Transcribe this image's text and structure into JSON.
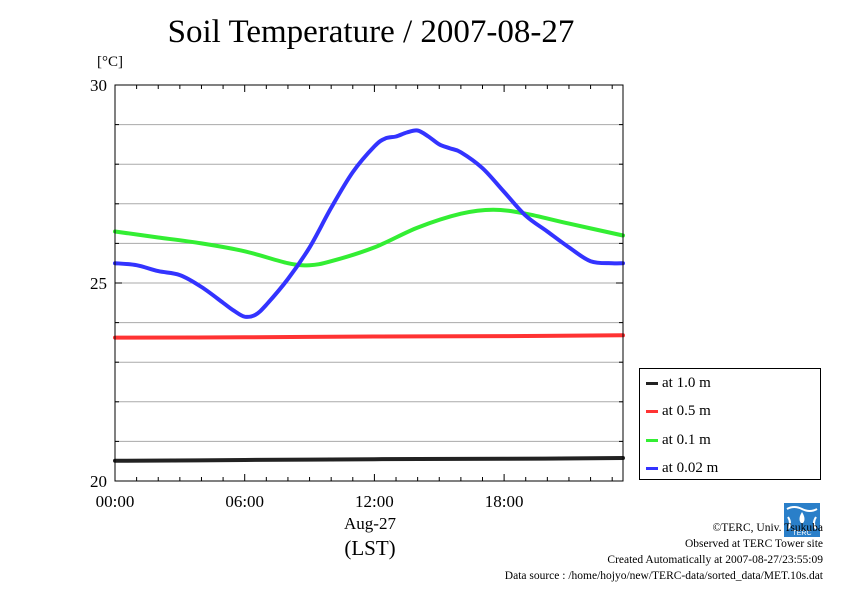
{
  "chart_data": {
    "type": "line",
    "title": "Soil Temperature / 2007-08-27",
    "ylabel": "[°C]",
    "xlabel_date": "Aug-27",
    "xlabel_tz": "(LST)",
    "xlim_hours": [
      0,
      23.5
    ],
    "ylim": [
      20,
      30
    ],
    "x_ticks": [
      {
        "value": 0,
        "label": "00:00"
      },
      {
        "value": 6,
        "label": "06:00"
      },
      {
        "value": 12,
        "label": "12:00"
      },
      {
        "value": 18,
        "label": "18:00"
      }
    ],
    "y_ticks": [
      {
        "value": 20,
        "label": "20"
      },
      {
        "value": 25,
        "label": "25"
      },
      {
        "value": 30,
        "label": "30"
      }
    ],
    "grid": true,
    "legend_position": "bottom-right",
    "series": [
      {
        "name": "at 1.0 m",
        "color": "#222222",
        "hours": [
          0,
          6,
          12,
          18,
          23.5
        ],
        "values": [
          20.51,
          20.53,
          20.55,
          20.56,
          20.58
        ]
      },
      {
        "name": "at 0.5 m",
        "color": "#ff3333",
        "hours": [
          0,
          6,
          12,
          18,
          23.5
        ],
        "values": [
          23.62,
          23.63,
          23.65,
          23.66,
          23.68
        ]
      },
      {
        "name": "at 0.1 m",
        "color": "#33ee33",
        "hours": [
          0,
          2,
          4,
          6,
          8,
          9,
          10,
          12,
          14,
          16,
          17.5,
          19,
          21,
          23.5
        ],
        "values": [
          26.3,
          26.15,
          26.0,
          25.8,
          25.5,
          25.45,
          25.55,
          25.9,
          26.4,
          26.75,
          26.85,
          26.75,
          26.5,
          26.2
        ]
      },
      {
        "name": "at 0.02 m",
        "color": "#3333ff",
        "hours": [
          0,
          1,
          2,
          3,
          4,
          5,
          5.5,
          6,
          6.5,
          7,
          8,
          9,
          10,
          11,
          12,
          12.5,
          13,
          13.5,
          14,
          14.5,
          15,
          15.5,
          16,
          17,
          18,
          19,
          20,
          21,
          22,
          23,
          23.5
        ],
        "values": [
          25.5,
          25.45,
          25.3,
          25.2,
          24.9,
          24.5,
          24.3,
          24.15,
          24.2,
          24.45,
          25.1,
          25.9,
          26.9,
          27.8,
          28.45,
          28.65,
          28.7,
          28.8,
          28.85,
          28.7,
          28.5,
          28.4,
          28.3,
          27.9,
          27.3,
          26.7,
          26.3,
          25.9,
          25.55,
          25.5,
          25.5
        ]
      }
    ]
  },
  "credits": {
    "line1": "©TERC, Univ. Tsukuba",
    "line2": "Observed at TERC Tower site",
    "line3": "Created Automatically at 2007-08-27/23:55:09",
    "line4": "Data source : /home/hojyo/new/TERC-data/sorted_data/MET.10s.dat"
  }
}
